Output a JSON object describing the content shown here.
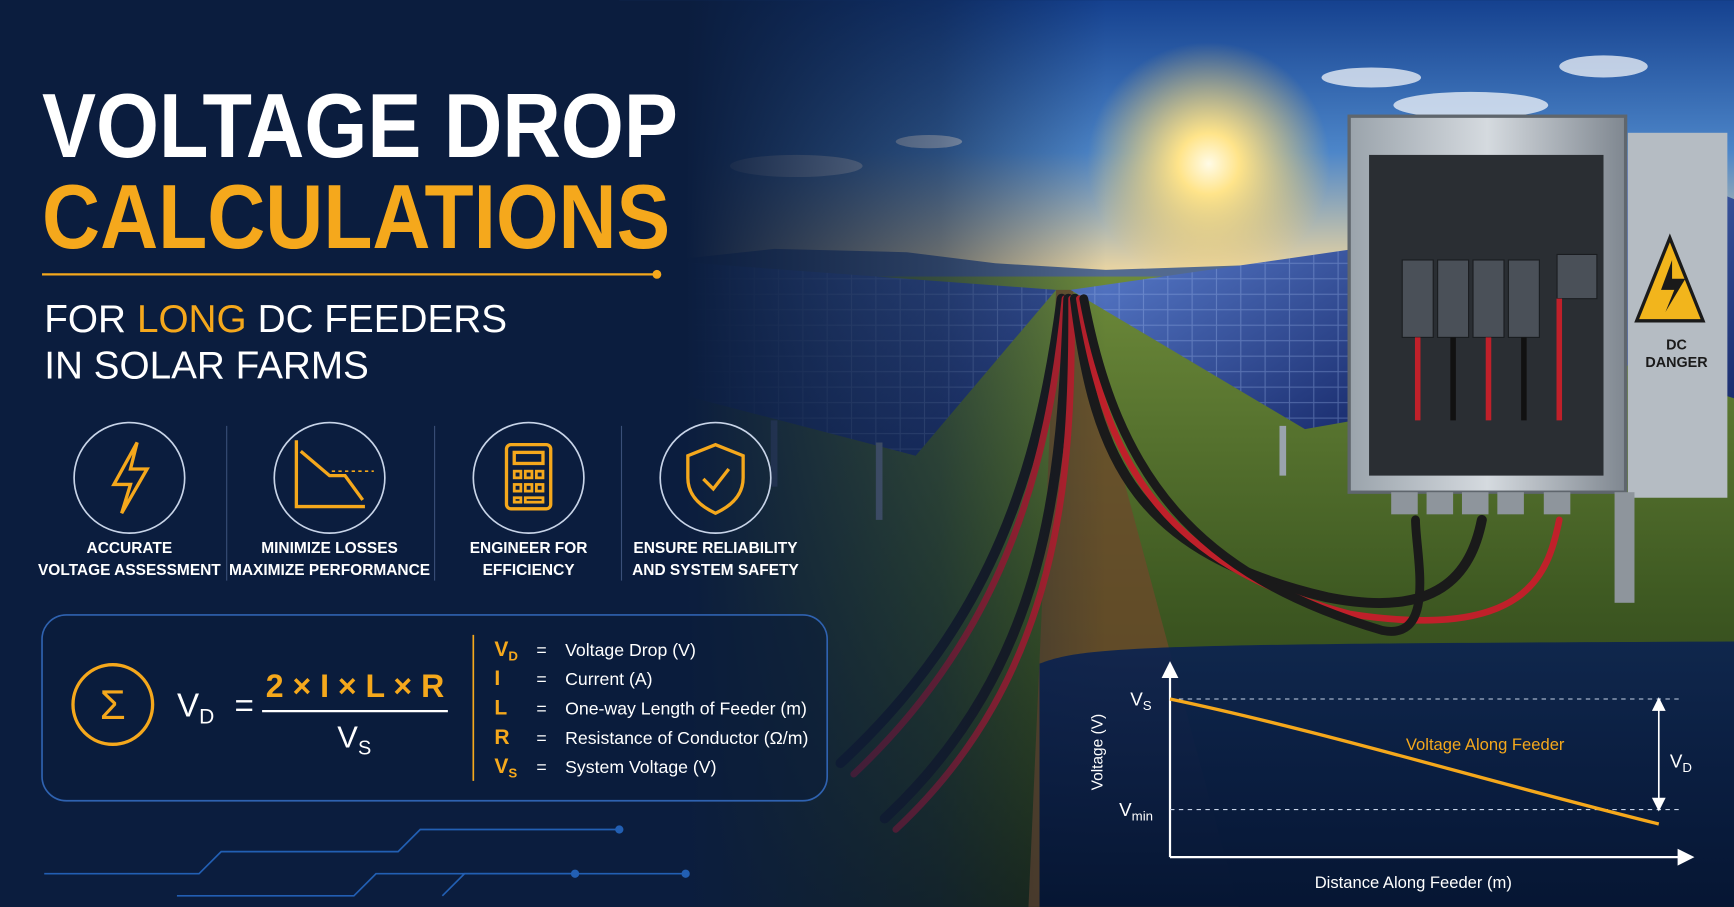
{
  "header": {
    "title_line1": "VOLTAGE DROP",
    "title_line2": "CALCULATIONS",
    "subtitle_line1": [
      "FOR",
      "LONG",
      "DC FEEDERS"
    ],
    "subtitle_line2": "IN SOLAR FARMS"
  },
  "features": [
    {
      "line1": "ACCURATE",
      "line2": "VOLTAGE ASSESSMENT"
    },
    {
      "line1": "MINIMIZE LOSSES",
      "line2": "MAXIMIZE PERFORMANCE"
    },
    {
      "line1": "ENGINEER FOR",
      "line2": "EFFICIENCY"
    },
    {
      "line1": "ENSURE RELIABILITY",
      "line2": "AND SYSTEM SAFETY"
    }
  ],
  "formula": {
    "lhs": {
      "symbol": "V",
      "sub": "D"
    },
    "equals": "=",
    "numerator": "2 × I × L × R",
    "denominator": {
      "symbol": "V",
      "sub": "S"
    }
  },
  "legend": [
    {
      "symbol": "V",
      "sub": "D",
      "equals": "=",
      "meaning": "Voltage Drop (V)"
    },
    {
      "symbol": "I",
      "equals": "=",
      "meaning": "Current (A)"
    },
    {
      "symbol": "L",
      "equals": "=",
      "meaning": "One-way Length of Feeder (m)"
    },
    {
      "symbol": "R",
      "equals": "=",
      "meaning": "Resistance of Conductor (Ω/m)"
    },
    {
      "symbol": "V",
      "sub": "S",
      "equals": "=",
      "meaning": "System Voltage (V)"
    }
  ],
  "sign": {
    "line1": "DC",
    "line2": "DANGER"
  },
  "graph": {
    "y_axis_label": "Voltage (V)",
    "x_axis_label": "Distance Along Feeder (m)",
    "curve_label": "Voltage Along Feeder",
    "top_level": {
      "symbol": "V",
      "sub": "S"
    },
    "bottom_level": {
      "symbol": "V",
      "sub": "min"
    },
    "drop": {
      "symbol": "V",
      "sub": "D"
    }
  }
}
